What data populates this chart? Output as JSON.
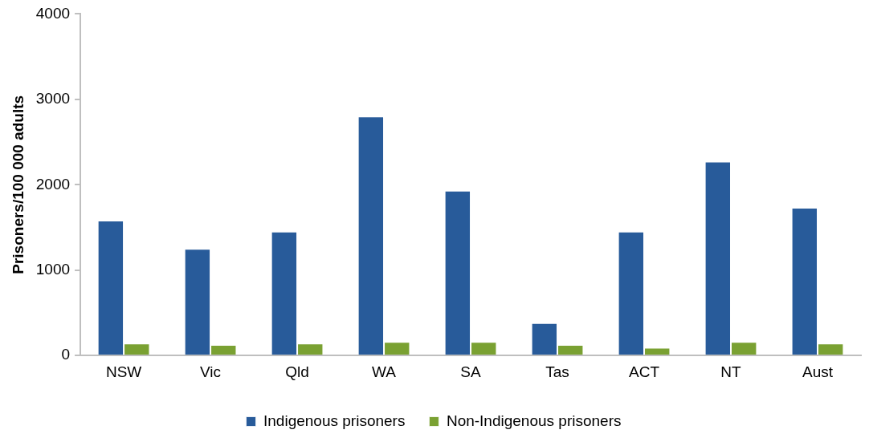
{
  "chart_data": {
    "type": "bar",
    "ylabel": "Prisoners/100 000 adults",
    "categories": [
      "NSW",
      "Vic",
      "Qld",
      "WA",
      "SA",
      "Tas",
      "ACT",
      "NT",
      "Aust"
    ],
    "series": [
      {
        "name": "Indigenous prisoners",
        "color": "#285b9a",
        "values": [
          1580,
          1250,
          1450,
          2800,
          1930,
          380,
          1450,
          2270,
          1730
        ]
      },
      {
        "name": "Non-Indigenous prisoners",
        "color": "#7aa132",
        "values": [
          140,
          125,
          140,
          160,
          160,
          125,
          90,
          160,
          140
        ]
      }
    ],
    "ylim": [
      0,
      4000
    ],
    "yticks": [
      0,
      1000,
      2000,
      3000,
      4000
    ],
    "grid": false,
    "legend": "bottom"
  }
}
